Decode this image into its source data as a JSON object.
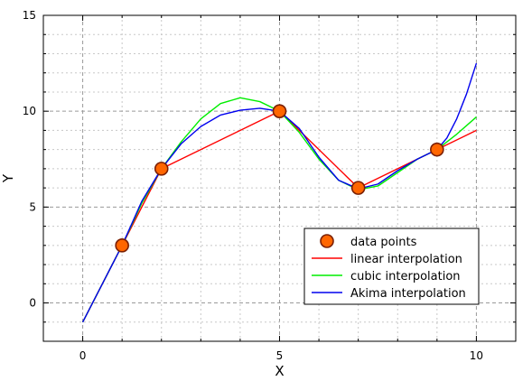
{
  "chart_data": {
    "type": "line",
    "title": "",
    "xlabel": "X",
    "ylabel": "Y",
    "xlim": [
      -1,
      11
    ],
    "ylim": [
      -2,
      15
    ],
    "x_ticks": [
      0,
      5,
      10
    ],
    "x_tick_labels": [
      "0",
      "5",
      "10"
    ],
    "y_ticks": [
      0,
      5,
      10,
      15
    ],
    "y_tick_labels": [
      "0",
      "5",
      "10",
      "15"
    ],
    "grid": true,
    "legend_position": "lower-right",
    "series": [
      {
        "name": "data points",
        "kind": "markers",
        "color": "#ff6600",
        "edge_color": "#7a1f00",
        "x": [
          1,
          2,
          5,
          7,
          9
        ],
        "y": [
          3,
          7,
          10,
          6,
          8
        ]
      },
      {
        "name": "linear interpolation",
        "kind": "line",
        "color": "#ff0000",
        "x": [
          0,
          1,
          2,
          5,
          7,
          9,
          10
        ],
        "y": [
          -1,
          3,
          7,
          10,
          6,
          8,
          9
        ]
      },
      {
        "name": "cubic interpolation",
        "kind": "line",
        "color": "#00ee00",
        "x": [
          0,
          0.5,
          1,
          1.5,
          2,
          2.5,
          3,
          3.5,
          4,
          4.5,
          5,
          5.5,
          6,
          6.5,
          7,
          7.5,
          8,
          8.5,
          9,
          9.5,
          10
        ],
        "y": [
          -1,
          1.0,
          3,
          5.2,
          7,
          8.4,
          9.6,
          10.4,
          10.7,
          10.5,
          10,
          8.9,
          7.5,
          6.4,
          5.9,
          6.1,
          6.8,
          7.5,
          8.0,
          8.8,
          9.7
        ]
      },
      {
        "name": "Akima interpolation",
        "kind": "line",
        "color": "#0000ee",
        "x": [
          0,
          0.5,
          1,
          1.5,
          2,
          2.5,
          3,
          3.5,
          4,
          4.5,
          5,
          5.5,
          6,
          6.5,
          7,
          7.5,
          8,
          8.5,
          9,
          9.25,
          9.5,
          9.75,
          10
        ],
        "y": [
          -1,
          1.0,
          3,
          5.3,
          7,
          8.3,
          9.2,
          9.8,
          10.05,
          10.15,
          10,
          9.1,
          7.6,
          6.4,
          5.95,
          6.2,
          6.9,
          7.5,
          8.0,
          8.6,
          9.6,
          10.9,
          12.5
        ]
      }
    ]
  }
}
